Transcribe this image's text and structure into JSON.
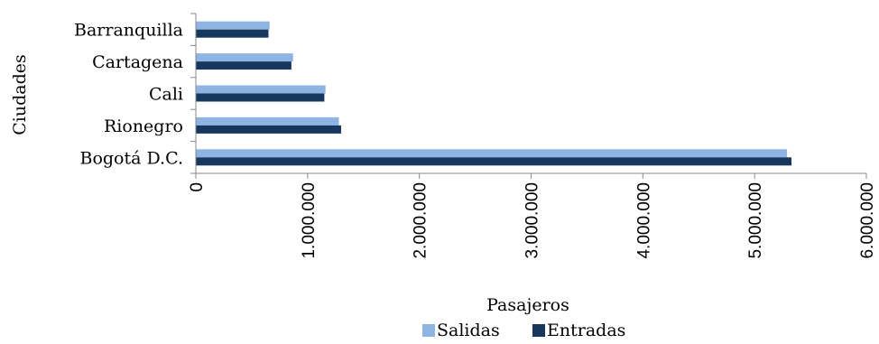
{
  "chart_data": {
    "type": "bar",
    "orientation": "horizontal",
    "categories": [
      "Bogotá D.C.",
      "Rionegro",
      "Cali",
      "Cartagena",
      "Barranquilla"
    ],
    "series": [
      {
        "name": "Salidas",
        "color": "#8EB4E3",
        "values": [
          5290000,
          1280000,
          1160000,
          870000,
          660000
        ]
      },
      {
        "name": "Entradas",
        "color": "#17375E",
        "values": [
          5330000,
          1300000,
          1150000,
          855000,
          650000
        ]
      }
    ],
    "xlabel": "Pasajeros",
    "ylabel": "Ciudades",
    "xlim": [
      0,
      6000000
    ],
    "xticks": [
      "0",
      "1.000.000",
      "2.000.000",
      "3.000.000",
      "4.000.000",
      "5.000.000",
      "6.000.000"
    ],
    "grid": false,
    "legend": "bottom"
  }
}
